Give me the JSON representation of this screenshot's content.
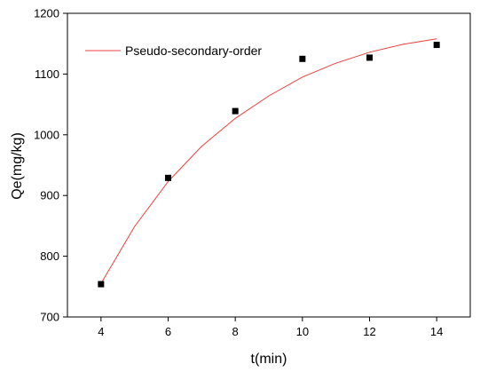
{
  "chart_data": {
    "type": "scatter",
    "xlabel": "t(min)",
    "ylabel": "Qe(mg/kg)",
    "xlim": [
      3,
      15
    ],
    "ylim": [
      700,
      1200
    ],
    "xticks": [
      4,
      6,
      8,
      10,
      12,
      14
    ],
    "yticks": [
      700,
      800,
      900,
      1000,
      1100,
      1200
    ],
    "grid": false,
    "legend_position": "top-left",
    "series": [
      {
        "kind": "points",
        "marker": "square",
        "color": "#000000",
        "x": [
          4,
          6,
          8,
          10,
          12,
          14
        ],
        "y": [
          754,
          929,
          1039,
          1125,
          1127,
          1148
        ]
      },
      {
        "kind": "fit-line",
        "name": "Pseudo-secondary-order",
        "color": "#e8413c",
        "x": [
          4,
          5,
          6,
          7,
          8,
          9,
          10,
          11,
          12,
          13,
          14
        ],
        "y": [
          755,
          849,
          923,
          981,
          1027,
          1064,
          1095,
          1118,
          1136,
          1149,
          1158
        ]
      }
    ]
  }
}
